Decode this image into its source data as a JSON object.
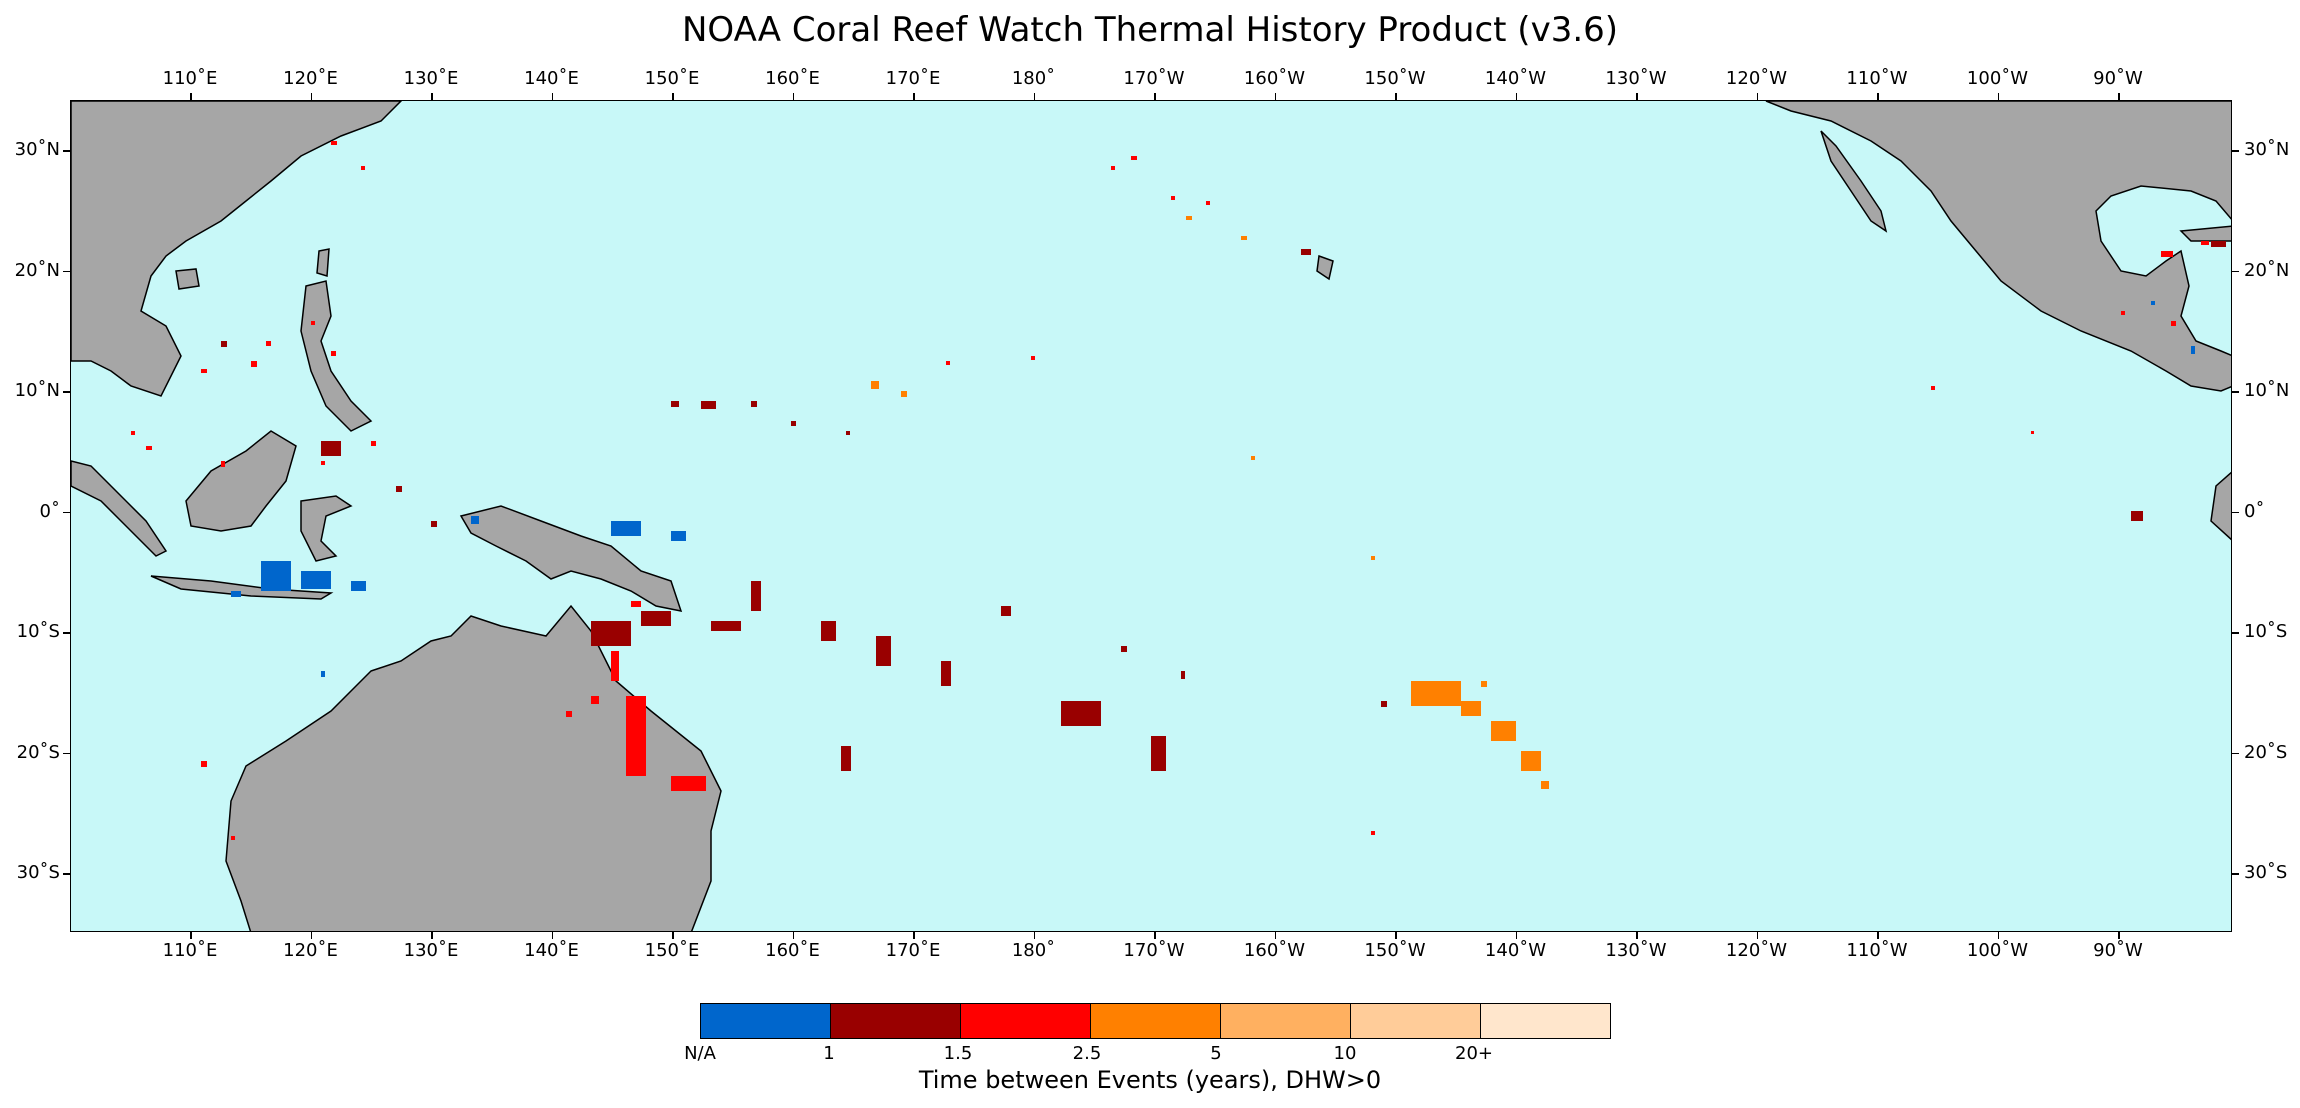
{
  "title": "NOAA Coral Reef Watch Thermal History Product (v3.6)",
  "lon_ticks": [
    "110˚E",
    "120˚E",
    "130˚E",
    "140˚E",
    "150˚E",
    "160˚E",
    "170˚E",
    "180˚",
    "170˚W",
    "160˚W",
    "150˚W",
    "140˚W",
    "130˚W",
    "120˚W",
    "110˚W",
    "100˚W",
    "90˚W"
  ],
  "lat_ticks": [
    "30˚N",
    "20˚N",
    "10˚N",
    "0˚",
    "10˚S",
    "20˚S",
    "30˚S"
  ],
  "colorbar": {
    "title": "Time between Events (years), DHW>0",
    "labels": [
      "N/A",
      "1",
      "1.5",
      "2.5",
      "5",
      "10",
      "20+"
    ],
    "colors": [
      "#0066cc",
      "#990000",
      "#ff0000",
      "#ff8000",
      "#ffb060",
      "#ffcc99",
      "#ffe6cc"
    ]
  },
  "colors": {
    "ocean": "#c8f8f8",
    "land": "#a6a6a6",
    "coastline": "#000000"
  }
}
